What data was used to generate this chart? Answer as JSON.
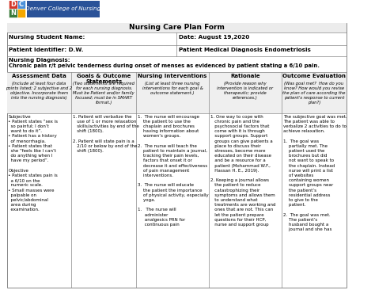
{
  "title": "Nursing Care Plan Form",
  "header_row": [
    "Nursing Student Name:",
    "Date: August 19,2020"
  ],
  "header_row2": [
    "Patient Identifier: D.W.",
    "Patient Medical Diagnosis Endometriosis"
  ],
  "nursing_diagnosis_label": "Nursing Diagnosis:",
  "nursing_diagnosis_text": "Chronic pain r/t pelvic tenderness during onset of menses as evidenced by patient stating a 6/10 pain.",
  "col_headers": [
    "Assessment Data",
    "Goals & Outcome\nStatements",
    "Nursing Interventions",
    "Rationale",
    "Outcome Evaluation"
  ],
  "col_subheaders": [
    "(Include at least four data\npoints listed; 2 subjective and 2\nobjective. Incorporate them\ninto the nursing diagnosis)",
    "(Two statements are required\nfor each nursing diagnosis.\nMust be Patient and/or family\nfocused; must be in SMART\nformat.)",
    "(List at least three nursing\ninterventions for each goal &\noutcome statement.)",
    "(Provide reason why\nintervention is indicated or\ntherapeutic; provide\nreferences.)",
    "(Was goal met?  How do you\nknow? How would you revise\nthe plan of care according the\npatient's response to current\nplan?)"
  ],
  "col1_content": "Subjective\n• Patient states “sex is\n  so painful; I don’t\n  want to do it”.\n• Patient has a history\n  of menorrhagia.\n• Patient states that\n  she “feels like I can’t\n  do anything when I\n  have my period”.\n\nObjective\n• Patient states pain is\n  a 6/10 on the\n  numeric scale.\n• Small masses were\n  palpable on\n  pelvic/abdominal\n  area during\n  examination.",
  "col2_content": "1. Patient will verbalize the\n   use of 1 or more relaxation\n   skills/activities by end of the\n   shift (1800).\n\n2. Patient will state pain is a\n   2/10 or below by end of the\n   shift (1800).",
  "col3_content": "1.  The nurse will encourage\n    the patient to use the\n    chaplain and brochures\n    having information about\n    women’s groups.\n\n2.  The nurse will teach the\n    patient to maintain a journal,\n    tracking their pain levels,\n    factors that onset it or\n    decrease it and effectiveness\n    of pain management\n    interventions.\n\n3.  The nurse will educate\n    the patient the importance\n    of physical activity, especially\n    yoga.\n\n1.   The nurse will\n     administer\n     analgesics PRN for\n     continuous pain",
  "col4_content": "1. One way to cope with\n   chronic pain and the\n   psychosocial factors that\n   come with it is through\n   support groups. Support\n   groups can give patients a\n   place to discuss their\n   stresses, become more\n   educated on their disease\n   and be a resource for a\n   patient (Mohammad W.F.,\n   Hassan H. E., 2019).\n\n2. Keeping a journal allows\n   the patient to reduce\n   catastrophizing their\n   symptoms and allows them\n   to understand what\n   treatments are working and\n   ones that are not. This can\n   let the patient prepare\n   questions for their HCP,\n   nurse and support group",
  "col5_content": "The subjective goal was met.\nThe patient was able to\nverbalize 2 activities to do to\nachieve relaxation.\n\n1.  The goal was\n    partially met. The\n    patient used the\n    brochures but did\n    not want to speak to\n    the chaplain. Instead\n    nurse will print a list\n    of websites\n    containing women\n    support groups near\n    the patient’s\n    residential address\n    to give to the\n    patient.\n\n2.  The goal was met.\n    The patient’s\n    husband bought a\n    journal and she has",
  "bg_color": "#ffffff",
  "border_color": "#888888",
  "school_name": "Denver College of Nursing",
  "logo_sq_colors": [
    "#d4362a",
    "#4a90d9",
    "#3a7a3a",
    "#f5a800"
  ],
  "logo_sq_letters": [
    "D",
    "C",
    "N",
    ""
  ],
  "logo_banner_color": "#2a5298",
  "logo_text_color": "#ffffff",
  "col_header_bg": "#e8e8e8",
  "font_size_title": 6.5,
  "font_size_col_header": 5.0,
  "font_size_subheader": 3.8,
  "font_size_body": 4.0,
  "font_size_label": 5.2
}
